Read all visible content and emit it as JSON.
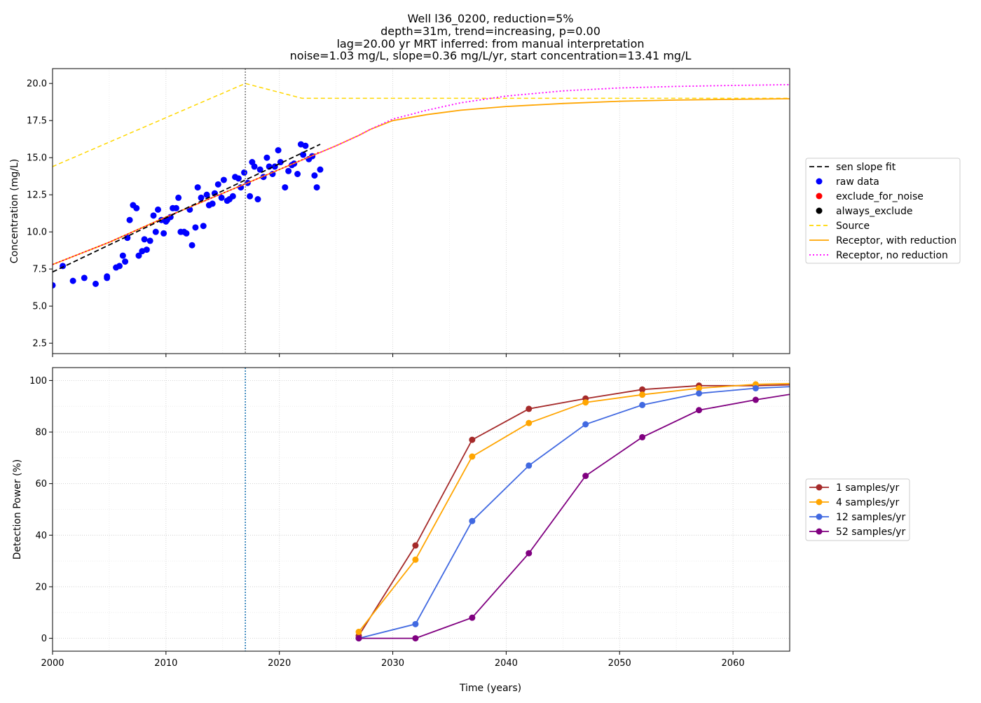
{
  "figure": {
    "title_lines": [
      "Well l36_0200, reduction=5%",
      "depth=31m, trend=increasing, p=0.00",
      "lag=20.00 yr MRT inferred: from manual interpretation",
      "noise=1.03 mg/L, slope=0.36 mg/L/yr, start concentration=13.41 mg/L"
    ],
    "xlabel": "Time (years)"
  },
  "chart_data": [
    {
      "type": "scatter",
      "ylabel": "Concentration (mg/L)",
      "xlim": [
        2000,
        2065
      ],
      "ylim": [
        1.8,
        21.0
      ],
      "xticks": [
        2000,
        2010,
        2020,
        2030,
        2040,
        2050,
        2060
      ],
      "xtick_labels": [],
      "yticks": [
        2.5,
        5.0,
        7.5,
        10.0,
        12.5,
        15.0,
        17.5,
        20.0
      ],
      "ytick_labels": [
        "2.5",
        "5.0",
        "7.5",
        "10.0",
        "12.5",
        "15.0",
        "17.5",
        "20.0"
      ],
      "grid": "vertical dotted",
      "legend_position": "right",
      "vline_x": 2017,
      "series": [
        {
          "name": "raw data",
          "kind": "points",
          "color": "#0000ff",
          "points": [
            [
              2000,
              6.4
            ],
            [
              2000.9,
              7.7
            ],
            [
              2001.8,
              6.7
            ],
            [
              2002.8,
              6.9
            ],
            [
              2003.8,
              6.5
            ],
            [
              2004.8,
              7.0
            ],
            [
              2004.8,
              6.9
            ],
            [
              2005.6,
              7.6
            ],
            [
              2005.9,
              7.7
            ],
            [
              2006.2,
              8.4
            ],
            [
              2006.4,
              8.0
            ],
            [
              2006.6,
              9.6
            ],
            [
              2006.8,
              10.8
            ],
            [
              2007.1,
              11.8
            ],
            [
              2007.4,
              11.6
            ],
            [
              2007.6,
              8.4
            ],
            [
              2007.9,
              8.7
            ],
            [
              2008.1,
              9.5
            ],
            [
              2008.3,
              8.8
            ],
            [
              2008.6,
              9.4
            ],
            [
              2008.9,
              11.1
            ],
            [
              2009.1,
              10.0
            ],
            [
              2009.3,
              11.5
            ],
            [
              2009.6,
              10.8
            ],
            [
              2009.8,
              9.9
            ],
            [
              2010.0,
              10.7
            ],
            [
              2010.1,
              10.8
            ],
            [
              2010.4,
              11.0
            ],
            [
              2010.6,
              11.6
            ],
            [
              2010.9,
              11.6
            ],
            [
              2011.1,
              12.3
            ],
            [
              2011.3,
              10.0
            ],
            [
              2011.6,
              10.0
            ],
            [
              2011.8,
              9.9
            ],
            [
              2012.1,
              11.5
            ],
            [
              2012.3,
              9.1
            ],
            [
              2012.6,
              10.3
            ],
            [
              2012.8,
              13.0
            ],
            [
              2013.1,
              12.3
            ],
            [
              2013.3,
              10.4
            ],
            [
              2013.6,
              12.5
            ],
            [
              2013.8,
              11.8
            ],
            [
              2014.1,
              11.9
            ],
            [
              2014.3,
              12.6
            ],
            [
              2014.6,
              13.2
            ],
            [
              2014.9,
              12.3
            ],
            [
              2015.1,
              13.5
            ],
            [
              2015.4,
              12.1
            ],
            [
              2015.6,
              12.2
            ],
            [
              2015.9,
              12.4
            ],
            [
              2016.1,
              13.7
            ],
            [
              2016.4,
              13.6
            ],
            [
              2016.6,
              13.0
            ],
            [
              2016.9,
              14.0
            ],
            [
              2017.2,
              13.3
            ],
            [
              2017.4,
              12.4
            ],
            [
              2017.6,
              14.7
            ],
            [
              2017.8,
              14.4
            ],
            [
              2018.1,
              12.2
            ],
            [
              2018.3,
              14.2
            ],
            [
              2018.6,
              13.7
            ],
            [
              2018.9,
              15.0
            ],
            [
              2019.1,
              14.4
            ],
            [
              2019.4,
              13.9
            ],
            [
              2019.6,
              14.4
            ],
            [
              2019.9,
              15.5
            ],
            [
              2020.1,
              14.7
            ],
            [
              2020.5,
              13.0
            ],
            [
              2020.8,
              14.1
            ],
            [
              2021.1,
              14.5
            ],
            [
              2021.3,
              14.6
            ],
            [
              2021.6,
              13.9
            ],
            [
              2021.9,
              15.9
            ],
            [
              2022.1,
              15.2
            ],
            [
              2022.3,
              15.8
            ],
            [
              2022.6,
              14.9
            ],
            [
              2022.9,
              15.1
            ],
            [
              2023.1,
              13.8
            ],
            [
              2023.3,
              13.0
            ],
            [
              2023.6,
              14.2
            ]
          ]
        },
        {
          "name": "sen slope fit",
          "kind": "line",
          "color": "#000000",
          "dash": "7,4",
          "width": 1.8,
          "points": [
            [
              2000,
              7.3
            ],
            [
              2023.6,
              15.9
            ]
          ]
        },
        {
          "name": "Source",
          "kind": "line",
          "color": "#ffd700",
          "dash": "6,4",
          "width": 1.5,
          "points": [
            [
              2000,
              14.4
            ],
            [
              2017,
              20.0
            ],
            [
              2022,
              19.0
            ],
            [
              2065,
              19.0
            ]
          ]
        },
        {
          "name": "Receptor, with reduction",
          "kind": "line",
          "color": "#ffa500",
          "dash": "",
          "width": 1.8,
          "points": [
            [
              2000,
              7.8
            ],
            [
              2005,
              9.3
            ],
            [
              2010,
              11.0
            ],
            [
              2015,
              12.6
            ],
            [
              2020,
              14.2
            ],
            [
              2025,
              15.8
            ],
            [
              2027,
              16.5
            ],
            [
              2028,
              16.9
            ],
            [
              2030,
              17.5
            ],
            [
              2033,
              17.9
            ],
            [
              2036,
              18.2
            ],
            [
              2040,
              18.45
            ],
            [
              2045,
              18.65
            ],
            [
              2050,
              18.8
            ],
            [
              2055,
              18.88
            ],
            [
              2060,
              18.93
            ],
            [
              2065,
              18.97
            ]
          ]
        },
        {
          "name": "Receptor, no reduction",
          "kind": "line",
          "color": "#ff00ff",
          "dash": "2,3",
          "width": 1.8,
          "points": [
            [
              2000,
              7.8
            ],
            [
              2005,
              9.3
            ],
            [
              2010,
              11.0
            ],
            [
              2015,
              12.6
            ],
            [
              2020,
              14.2
            ],
            [
              2025,
              15.8
            ],
            [
              2027,
              16.5
            ],
            [
              2028,
              16.9
            ],
            [
              2030,
              17.6
            ],
            [
              2033,
              18.2
            ],
            [
              2036,
              18.7
            ],
            [
              2040,
              19.15
            ],
            [
              2045,
              19.5
            ],
            [
              2050,
              19.7
            ],
            [
              2055,
              19.8
            ],
            [
              2060,
              19.87
            ],
            [
              2065,
              19.92
            ]
          ]
        },
        {
          "name": "red trace",
          "kind": "line",
          "color": "#ff0000",
          "dash": "2,3",
          "width": 1.4,
          "points": [
            [
              2000,
              7.8
            ],
            [
              2005,
              9.3
            ],
            [
              2010,
              11.0
            ],
            [
              2015,
              12.6
            ],
            [
              2020,
              14.2
            ],
            [
              2023.6,
              15.4
            ]
          ]
        }
      ],
      "legend": [
        {
          "label": "sen slope fit",
          "kind": "line",
          "color": "#000000",
          "dash": "7,4"
        },
        {
          "label": "raw data",
          "kind": "dot",
          "color": "#0000ff"
        },
        {
          "label": "exclude_for_noise",
          "kind": "dot",
          "color": "#ff0000"
        },
        {
          "label": "always_exclude",
          "kind": "dot",
          "color": "#000000"
        },
        {
          "label": "Source",
          "kind": "line",
          "color": "#ffd700",
          "dash": "6,4"
        },
        {
          "label": "Receptor, with reduction",
          "kind": "line",
          "color": "#ffa500",
          "dash": ""
        },
        {
          "label": "Receptor, no reduction",
          "kind": "line",
          "color": "#ff00ff",
          "dash": "2,3"
        }
      ]
    },
    {
      "type": "line",
      "ylabel": "Detection Power (%)",
      "xlim": [
        2000,
        2065
      ],
      "ylim": [
        -5,
        105
      ],
      "xticks": [
        2000,
        2010,
        2020,
        2030,
        2040,
        2050,
        2060
      ],
      "xtick_labels": [
        "2000",
        "2010",
        "2020",
        "2030",
        "2040",
        "2050",
        "2060"
      ],
      "yticks": [
        0,
        20,
        40,
        60,
        80,
        100
      ],
      "ytick_labels": [
        "0",
        "20",
        "40",
        "60",
        "80",
        "100"
      ],
      "grid": "dotted both",
      "legend_position": "right",
      "vline_x": 2017,
      "x": [
        2027,
        2032,
        2037,
        2042,
        2047,
        2052,
        2057,
        2062,
        2067
      ],
      "series": [
        {
          "name": "1 samples/yr",
          "color": "#a52a2a",
          "values": [
            1,
            36,
            77,
            89,
            93,
            96.5,
            98,
            98,
            98.5
          ]
        },
        {
          "name": "4 samples/yr",
          "color": "#ffa500",
          "values": [
            2.5,
            30.5,
            70.5,
            83.5,
            91.5,
            94.5,
            97,
            98.5,
            99
          ]
        },
        {
          "name": "12 samples/yr",
          "color": "#4169e1",
          "values": [
            0,
            5.5,
            45.5,
            67,
            83,
            90.5,
            95,
            97,
            98
          ]
        },
        {
          "name": "52 samples/yr",
          "color": "#800080",
          "values": [
            0,
            0,
            8,
            33,
            63,
            78,
            88.5,
            92.5,
            96
          ]
        }
      ]
    }
  ]
}
